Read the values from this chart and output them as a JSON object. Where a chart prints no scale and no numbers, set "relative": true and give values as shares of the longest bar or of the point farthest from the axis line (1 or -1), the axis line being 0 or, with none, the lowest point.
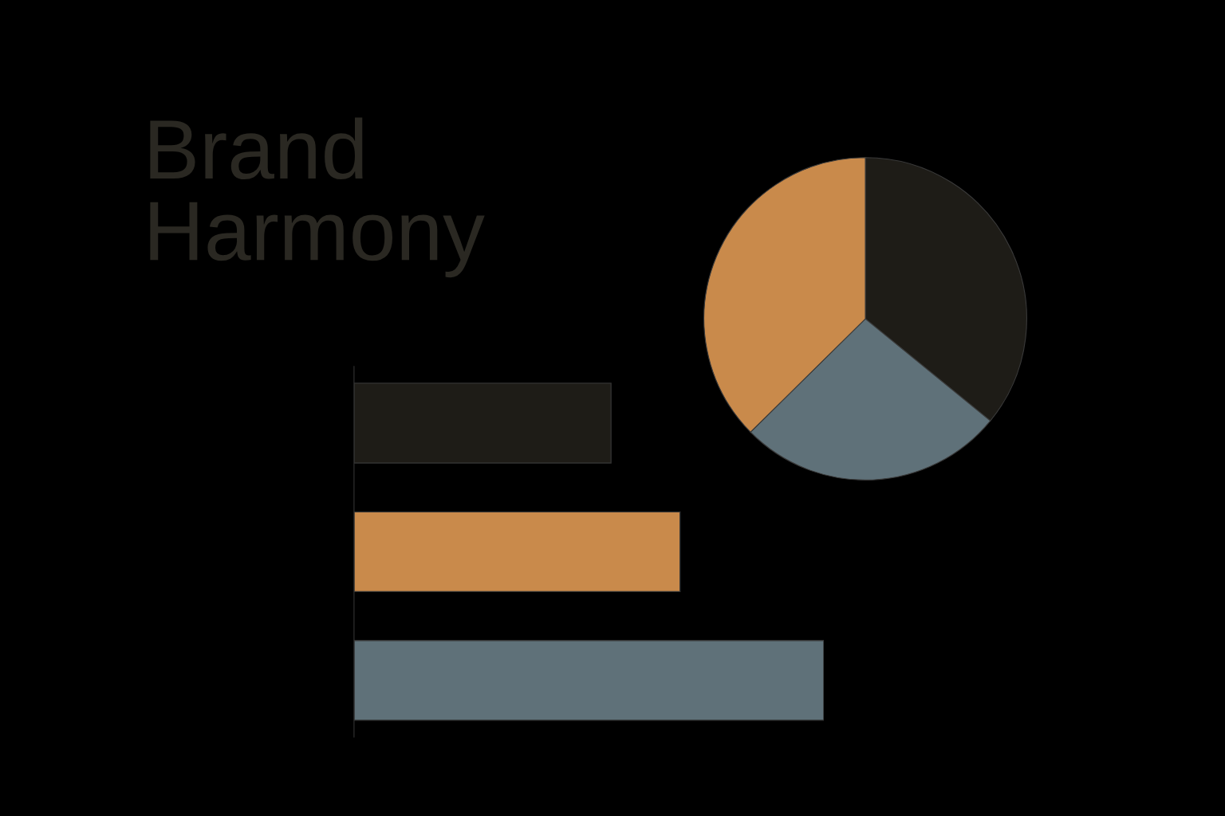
{
  "chart_data": [
    {
      "type": "bar",
      "orientation": "horizontal",
      "relative": true,
      "title": "Brand\nHarmony",
      "categories": [
        null,
        null,
        null
      ],
      "values": [
        0.547,
        0.694,
        1
      ],
      "colors": [
        "#1e1c17",
        "#c98a4b",
        "#5f7179"
      ],
      "grid": false,
      "legend": false
    },
    {
      "type": "pie",
      "categories": [
        null,
        null,
        null
      ],
      "values": [
        35.9,
        26.7,
        37.4
      ],
      "colors": [
        "#1e1c17",
        "#5f7179",
        "#c98a4b"
      ],
      "legend": false
    }
  ]
}
